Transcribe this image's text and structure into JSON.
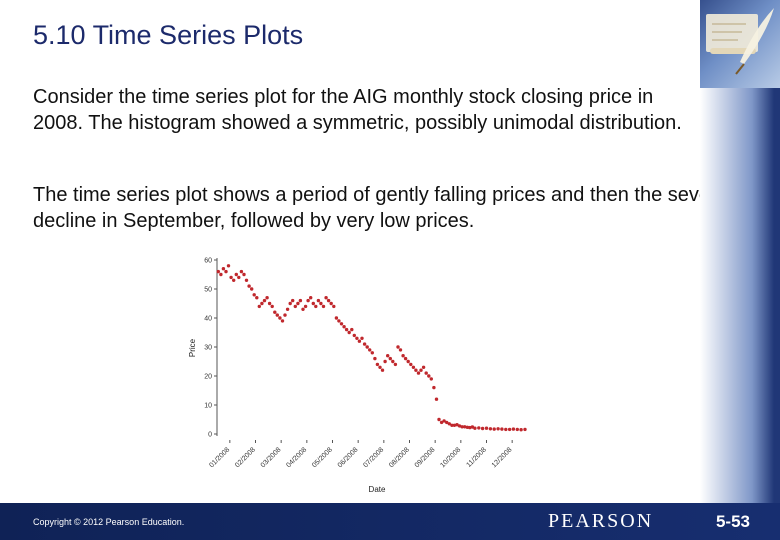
{
  "slide": {
    "title": "5.10 Time Series Plots",
    "paragraph_1": "Consider the time series plot for the AIG monthly stock closing price in 2008. The histogram showed a symmetric, possibly unimodal distribution.",
    "paragraph_2": "The time series plot shows a period of gently falling prices and then the severe decline in September, followed by very low prices.",
    "copyright": "Copyright © 2012 Pearson Education.",
    "publisher_logo": "PEARSON",
    "slide_number": "5-53",
    "decoration_icon": "quill-and-paper-icon"
  },
  "colors": {
    "title": "#1c2a6b",
    "footer": "#172e70",
    "points": "#c0282d"
  },
  "chart_data": {
    "type": "scatter",
    "title": "",
    "xlabel": "Date",
    "ylabel": "Price",
    "x_tick_labels": [
      "01/2008",
      "02/2008",
      "03/2008",
      "04/2008",
      "05/2008",
      "06/2008",
      "07/2008",
      "08/2008",
      "09/2008",
      "10/2008",
      "11/2008",
      "12/2008"
    ],
    "ylim": [
      0,
      60
    ],
    "y_ticks": [
      0,
      10,
      20,
      30,
      40,
      50,
      60
    ],
    "grid": false,
    "x_unit": "month index (0 = start of 01/2008, 12 = end of 12/2008)",
    "series": [
      {
        "values": [
          [
            0.05,
            56
          ],
          [
            0.15,
            55
          ],
          [
            0.25,
            57
          ],
          [
            0.35,
            56
          ],
          [
            0.45,
            58
          ],
          [
            0.55,
            54
          ],
          [
            0.65,
            53
          ],
          [
            0.75,
            55
          ],
          [
            0.85,
            54
          ],
          [
            0.95,
            56
          ],
          [
            1.05,
            55
          ],
          [
            1.15,
            53
          ],
          [
            1.25,
            51
          ],
          [
            1.35,
            50
          ],
          [
            1.45,
            48
          ],
          [
            1.55,
            47
          ],
          [
            1.65,
            44
          ],
          [
            1.75,
            45
          ],
          [
            1.85,
            46
          ],
          [
            1.95,
            47
          ],
          [
            2.05,
            45
          ],
          [
            2.15,
            44
          ],
          [
            2.25,
            42
          ],
          [
            2.35,
            41
          ],
          [
            2.45,
            40
          ],
          [
            2.55,
            39
          ],
          [
            2.65,
            41
          ],
          [
            2.75,
            43
          ],
          [
            2.85,
            45
          ],
          [
            2.95,
            46
          ],
          [
            3.05,
            44
          ],
          [
            3.15,
            45
          ],
          [
            3.25,
            46
          ],
          [
            3.35,
            43
          ],
          [
            3.45,
            44
          ],
          [
            3.55,
            46
          ],
          [
            3.65,
            47
          ],
          [
            3.75,
            45
          ],
          [
            3.85,
            44
          ],
          [
            3.95,
            46
          ],
          [
            4.05,
            45
          ],
          [
            4.15,
            44
          ],
          [
            4.25,
            47
          ],
          [
            4.35,
            46
          ],
          [
            4.45,
            45
          ],
          [
            4.55,
            44
          ],
          [
            4.65,
            40
          ],
          [
            4.75,
            39
          ],
          [
            4.85,
            38
          ],
          [
            4.95,
            37
          ],
          [
            5.05,
            36
          ],
          [
            5.15,
            35
          ],
          [
            5.25,
            36
          ],
          [
            5.35,
            34
          ],
          [
            5.45,
            33
          ],
          [
            5.55,
            32
          ],
          [
            5.65,
            33
          ],
          [
            5.75,
            31
          ],
          [
            5.85,
            30
          ],
          [
            5.95,
            29
          ],
          [
            6.05,
            28
          ],
          [
            6.15,
            26
          ],
          [
            6.25,
            24
          ],
          [
            6.35,
            23
          ],
          [
            6.45,
            22
          ],
          [
            6.55,
            25
          ],
          [
            6.65,
            27
          ],
          [
            6.75,
            26
          ],
          [
            6.85,
            25
          ],
          [
            6.95,
            24
          ],
          [
            7.05,
            30
          ],
          [
            7.15,
            29
          ],
          [
            7.25,
            27
          ],
          [
            7.35,
            26
          ],
          [
            7.45,
            25
          ],
          [
            7.55,
            24
          ],
          [
            7.65,
            23
          ],
          [
            7.75,
            22
          ],
          [
            7.85,
            21
          ],
          [
            7.95,
            22
          ],
          [
            8.05,
            23
          ],
          [
            8.15,
            21
          ],
          [
            8.25,
            20
          ],
          [
            8.35,
            19
          ],
          [
            8.45,
            16
          ],
          [
            8.55,
            12
          ],
          [
            8.65,
            5
          ],
          [
            8.75,
            4
          ],
          [
            8.85,
            4.5
          ],
          [
            8.95,
            4
          ],
          [
            9.05,
            3.5
          ],
          [
            9.15,
            3
          ],
          [
            9.25,
            3
          ],
          [
            9.35,
            3.2
          ],
          [
            9.45,
            2.8
          ],
          [
            9.55,
            2.5
          ],
          [
            9.65,
            2.5
          ],
          [
            9.75,
            2.3
          ],
          [
            9.85,
            2.2
          ],
          [
            9.95,
            2.4
          ],
          [
            10.05,
            2.0
          ],
          [
            10.2,
            2.1
          ],
          [
            10.35,
            1.9
          ],
          [
            10.5,
            2.0
          ],
          [
            10.65,
            1.8
          ],
          [
            10.8,
            1.7
          ],
          [
            10.95,
            1.8
          ],
          [
            11.1,
            1.7
          ],
          [
            11.25,
            1.6
          ],
          [
            11.4,
            1.6
          ],
          [
            11.55,
            1.7
          ],
          [
            11.7,
            1.6
          ],
          [
            11.85,
            1.5
          ],
          [
            12.0,
            1.6
          ]
        ]
      }
    ]
  }
}
